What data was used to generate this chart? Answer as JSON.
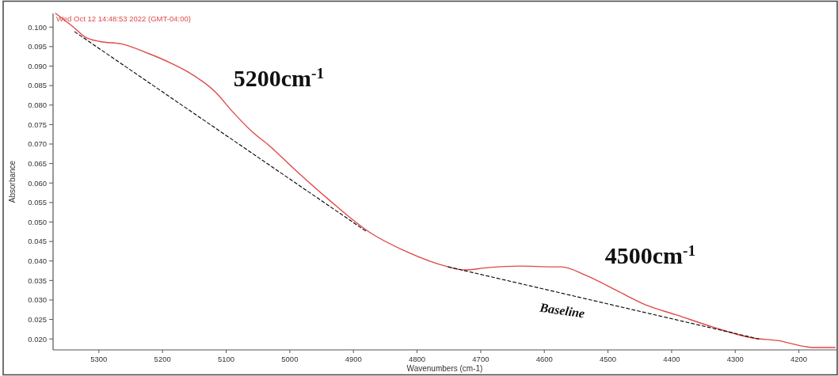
{
  "chart_data": {
    "type": "line",
    "xlabel": "Wavenumbers (cm-1)",
    "ylabel": "Absorbance",
    "xlim": [
      5372,
      4141
    ],
    "ylim": [
      0.0172,
      0.1035
    ],
    "xticks": [
      5300,
      5200,
      5100,
      5000,
      4900,
      4800,
      4700,
      4600,
      4500,
      4400,
      4300,
      4200
    ],
    "yticks": [
      {
        "value": 0.02,
        "label": "0.020"
      },
      {
        "value": 0.025,
        "label": "0.025"
      },
      {
        "value": 0.03,
        "label": "0.030"
      },
      {
        "value": 0.035,
        "label": "0.035"
      },
      {
        "value": 0.04,
        "label": "0.040"
      },
      {
        "value": 0.045,
        "label": "0.045"
      },
      {
        "value": 0.05,
        "label": "0.050"
      },
      {
        "value": 0.055,
        "label": "0.055"
      },
      {
        "value": 0.06,
        "label": "0.060"
      },
      {
        "value": 0.065,
        "label": "0.065"
      },
      {
        "value": 0.07,
        "label": "0.070"
      },
      {
        "value": 0.075,
        "label": "0.075"
      },
      {
        "value": 0.08,
        "label": "0.080"
      },
      {
        "value": 0.085,
        "label": "0.085"
      },
      {
        "value": 0.09,
        "label": "0.090"
      },
      {
        "value": 0.095,
        "label": "0.095"
      },
      {
        "value": 0.1,
        "label": "0.100"
      }
    ],
    "grid": false,
    "series": [
      {
        "color": "#e04848",
        "line_style": "solid",
        "x": [
          5368,
          5343,
          5321,
          5298,
          5265,
          5223,
          5186,
          5161,
          5116,
          5091,
          5058,
          5033,
          4993,
          4937,
          4875,
          4818,
          4751,
          4726,
          4689,
          4639,
          4586,
          4573,
          4536,
          4486,
          4440,
          4391,
          4334,
          4271,
          4234,
          4176,
          4143
        ],
        "values": [
          0.1035,
          0.1004,
          0.0974,
          0.0963,
          0.0957,
          0.0933,
          0.0907,
          0.0886,
          0.0832,
          0.0785,
          0.073,
          0.0697,
          0.0636,
          0.0555,
          0.0474,
          0.0425,
          0.0385,
          0.0377,
          0.0383,
          0.0387,
          0.0385,
          0.0385,
          0.0364,
          0.0324,
          0.0287,
          0.0261,
          0.023,
          0.0202,
          0.0196,
          0.0178,
          0.0178
        ]
      },
      {
        "color": "#000000",
        "line_style": "dashed",
        "x": [
          5338,
          4878,
          4820,
          4751,
          4263
        ],
        "values": [
          0.0988,
          0.0474,
          null,
          0.0385,
          0.02
        ]
      }
    ],
    "annotations": [
      "Wed Oct 12 14:48:53 2022 (GMT-04:00)",
      "5200cm$^{-1}$",
      "4500cm$^{-1}$",
      "Baseline"
    ]
  }
}
